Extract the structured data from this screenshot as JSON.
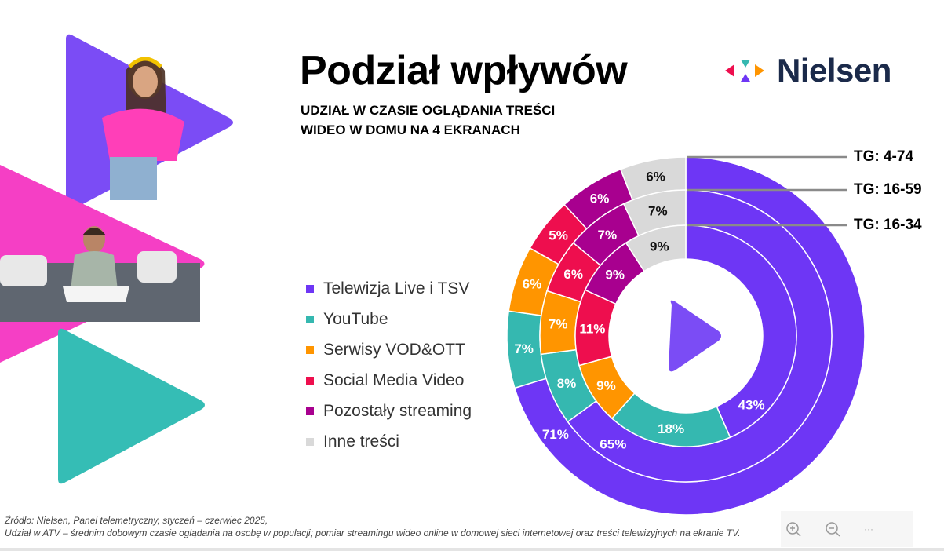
{
  "title": "Podział wpływów",
  "subtitle_line1": "UDZIAŁ W CZASIE OGLĄDANIA TREŚCI",
  "subtitle_line2": "WIDEO W DOMU NA 4 EKRANACH",
  "logo": {
    "text": "Nielsen"
  },
  "chart_data": {
    "type": "pie",
    "variant": "multi-ring donut",
    "categories": [
      "Telewizja Live i TSV",
      "YouTube",
      "Serwisy VOD&OTT",
      "Social Media Video",
      "Pozostały streaming",
      "Inne treści"
    ],
    "colors": [
      "#6e36f5",
      "#35b8b0",
      "#ff9500",
      "#ee0e4e",
      "#a8008f",
      "#d9d9d9"
    ],
    "legend_position": "left",
    "series": [
      {
        "name": "TG: 4-74",
        "ring": "outer",
        "values": [
          71,
          7,
          6,
          5,
          6,
          6
        ],
        "labels": [
          "71%",
          "7%",
          "6%",
          "5%",
          "6%",
          "6%"
        ]
      },
      {
        "name": "TG: 16-59",
        "ring": "middle",
        "values": [
          65,
          8,
          7,
          6,
          7,
          7
        ],
        "labels": [
          "65%",
          "8%",
          "7%",
          "6%",
          "7%",
          "7%"
        ]
      },
      {
        "name": "TG: 16-34",
        "ring": "inner",
        "values": [
          43,
          18,
          9,
          11,
          9,
          9
        ],
        "labels": [
          "43%",
          "18%",
          "9%",
          "11%",
          "9%",
          "9%"
        ]
      }
    ],
    "center_icon": "play-icon"
  },
  "legend": [
    "Telewizja Live i TSV",
    "YouTube",
    "Serwisy VOD&OTT",
    "Social Media Video",
    "Pozostały streaming",
    "Inne treści"
  ],
  "footer": {
    "line1": "Źródło: Nielsen, Panel telemetryczny, styczeń – czerwiec 2025,",
    "line2": "Udział w ATV – średnim dobowym czasie oglądania na osobę w populacji; pomiar streamingu wideo online w domowej sieci internetowej oraz treści telewizyjnych na ekranie TV."
  },
  "controls": {
    "more": "···"
  }
}
